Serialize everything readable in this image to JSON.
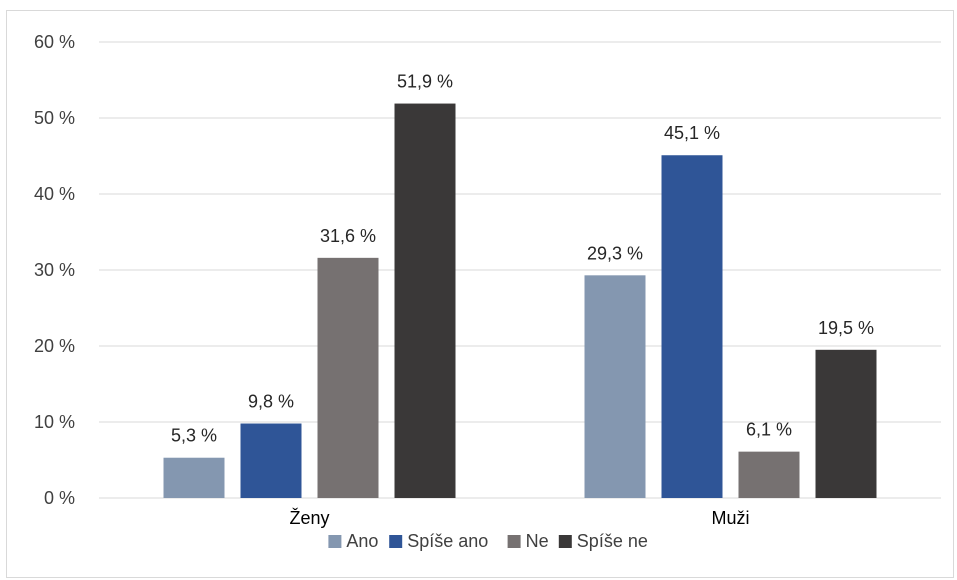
{
  "chart_data": {
    "type": "bar",
    "categories": [
      "Ženy",
      "Muži"
    ],
    "series": [
      {
        "name": "Ano",
        "color": "#8497b0",
        "values": [
          5.3,
          29.3
        ],
        "labels": [
          "5,3 %",
          "29,3 %"
        ]
      },
      {
        "name": "Spíše ano",
        "color": "#2f5597",
        "values": [
          9.8,
          45.1
        ],
        "labels": [
          "9,8 %",
          "45,1 %"
        ]
      },
      {
        "name": "Ne",
        "color": "#767171",
        "values": [
          31.6,
          6.1
        ],
        "labels": [
          "31,6 %",
          "6,1 %"
        ]
      },
      {
        "name": "Spíše ne",
        "color": "#3a3838",
        "values": [
          51.9,
          19.5
        ],
        "labels": [
          "51,9 %",
          "19,5  %"
        ]
      }
    ],
    "ylim": [
      0,
      60
    ],
    "yticks": [
      0,
      10,
      20,
      30,
      40,
      50,
      60
    ],
    "ytick_labels": [
      "0 %",
      "10 %",
      "20 %",
      "30 %",
      "40 %",
      "50 %",
      "60 %"
    ],
    "grid": true,
    "legend_position": "bottom",
    "title": "",
    "xlabel": "",
    "ylabel": ""
  }
}
